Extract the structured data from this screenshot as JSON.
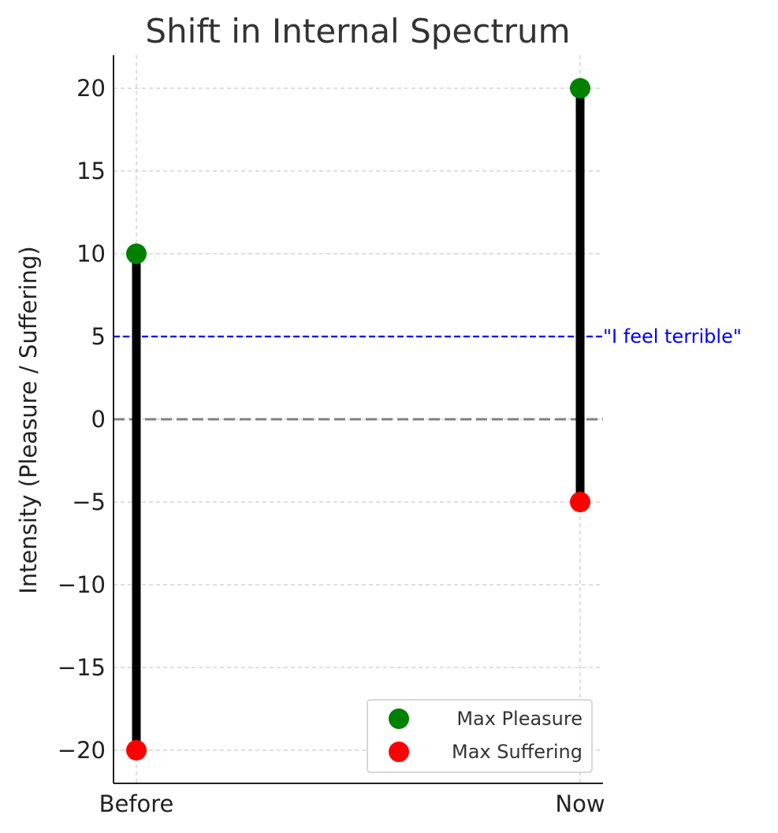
{
  "chart_data": {
    "type": "line",
    "title": "Shift in Internal Spectrum",
    "xlabel": "",
    "ylabel": "Intensity (Pleasure / Suffering)",
    "categories": [
      "Before",
      "Now"
    ],
    "ylim": [
      -22,
      22
    ],
    "yticks": [
      20,
      15,
      10,
      5,
      0,
      -5,
      -10,
      -15,
      -20
    ],
    "ytick_labels": [
      "20",
      "15",
      "10",
      "5",
      "0",
      "−5",
      "−10",
      "−15",
      "−20"
    ],
    "series": [
      {
        "name": "Max Pleasure",
        "values": [
          10,
          20
        ],
        "color": "#008000"
      },
      {
        "name": "Max Suffering",
        "values": [
          -20,
          -5
        ],
        "color": "#ff0000"
      }
    ],
    "range_bar_color": "#000000",
    "reference_lines": [
      {
        "y": 0,
        "style": "dashed",
        "color": "#808080"
      },
      {
        "y": 5,
        "style": "dashed",
        "color": "#0000ff",
        "label": "\"I feel terrible\""
      }
    ],
    "grid": true,
    "legend_position": "bottom-right"
  }
}
